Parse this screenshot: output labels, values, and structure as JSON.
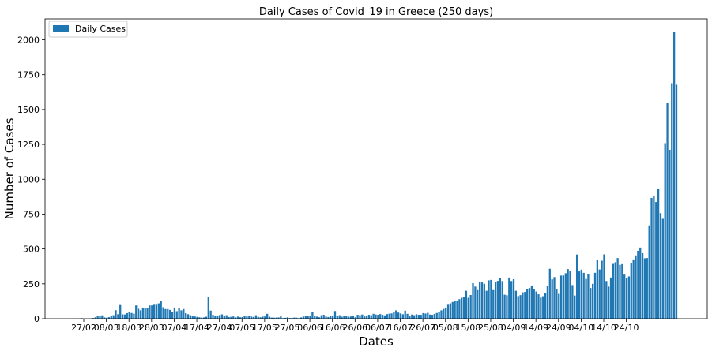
{
  "chart_data": {
    "type": "bar",
    "title": "Daily Cases of Covid_19 in Greece (250 days)",
    "xlabel": "Dates",
    "ylabel": "Number of Cases",
    "ylim": [
      0,
      2150
    ],
    "yticks": [
      0,
      250,
      500,
      750,
      1000,
      1250,
      1500,
      1750,
      2000
    ],
    "xtick_labels": [
      "27/02",
      "08/03",
      "18/03",
      "28/03",
      "07/04",
      "17/04",
      "27/04",
      "07/05",
      "17/05",
      "27/05",
      "06/06",
      "16/06",
      "26/06",
      "06/07",
      "16/07",
      "26/07",
      "05/08",
      "15/08",
      "25/08",
      "04/09",
      "14/09",
      "24/09",
      "04/10",
      "14/10",
      "24/10"
    ],
    "legend": {
      "label": "Daily Cases",
      "position": "upper left"
    },
    "bar_color": "#1f77b4",
    "grid": false,
    "series": [
      {
        "name": "Daily Cases",
        "values": [
          1,
          0,
          1,
          4,
          0,
          0,
          0,
          2,
          5,
          10,
          21,
          17,
          24,
          9,
          7,
          11,
          21,
          25,
          61,
          32,
          98,
          31,
          30,
          40,
          46,
          41,
          36,
          95,
          71,
          60,
          78,
          76,
          75,
          95,
          95,
          100,
          100,
          110,
          127,
          82,
          69,
          69,
          63,
          50,
          80,
          54,
          74,
          60,
          69,
          40,
          32,
          25,
          20,
          16,
          13,
          10,
          8,
          9,
          14,
          156,
          58,
          28,
          22,
          17,
          26,
          31,
          18,
          25,
          12,
          13,
          16,
          9,
          15,
          10,
          12,
          20,
          16,
          17,
          15,
          12,
          25,
          13,
          10,
          15,
          16,
          35,
          14,
          8,
          7,
          8,
          9,
          16,
          4,
          6,
          10,
          5,
          6,
          8,
          7,
          4,
          9,
          15,
          20,
          18,
          22,
          49,
          17,
          15,
          10,
          25,
          28,
          15,
          12,
          18,
          20,
          55,
          17,
          25,
          14,
          22,
          18,
          14,
          16,
          18,
          10,
          28,
          25,
          30,
          16,
          22,
          28,
          25,
          35,
          30,
          28,
          33,
          28,
          24,
          33,
          36,
          38,
          50,
          60,
          44,
          38,
          32,
          58,
          35,
          22,
          30,
          25,
          32,
          28,
          28,
          40,
          37,
          42,
          30,
          28,
          34,
          41,
          50,
          60,
          70,
          80,
          100,
          110,
          120,
          125,
          130,
          140,
          150,
          155,
          200,
          150,
          170,
          255,
          230,
          205,
          262,
          260,
          250,
          200,
          275,
          278,
          205,
          263,
          271,
          290,
          270,
          172,
          168,
          295,
          270,
          283,
          200,
          162,
          169,
          189,
          192,
          210,
          220,
          238,
          210,
          195,
          175,
          151,
          161,
          186,
          232,
          358,
          282,
          298,
          212,
          178,
          309,
          310,
          326,
          356,
          341,
          241,
          166,
          460,
          339,
          352,
          329,
          285,
          322,
          220,
          250,
          329,
          420,
          353,
          416,
          461,
          270,
          230,
          295,
          393,
          405,
          435,
          386,
          391,
          316,
          290,
          303,
          401,
          425,
          454,
          487,
          510,
          470,
          433,
          435,
          669,
          866,
          878,
          837,
          932,
          757,
          716,
          1259,
          1547,
          1211,
          1689,
          2056,
          1678
        ]
      }
    ]
  }
}
